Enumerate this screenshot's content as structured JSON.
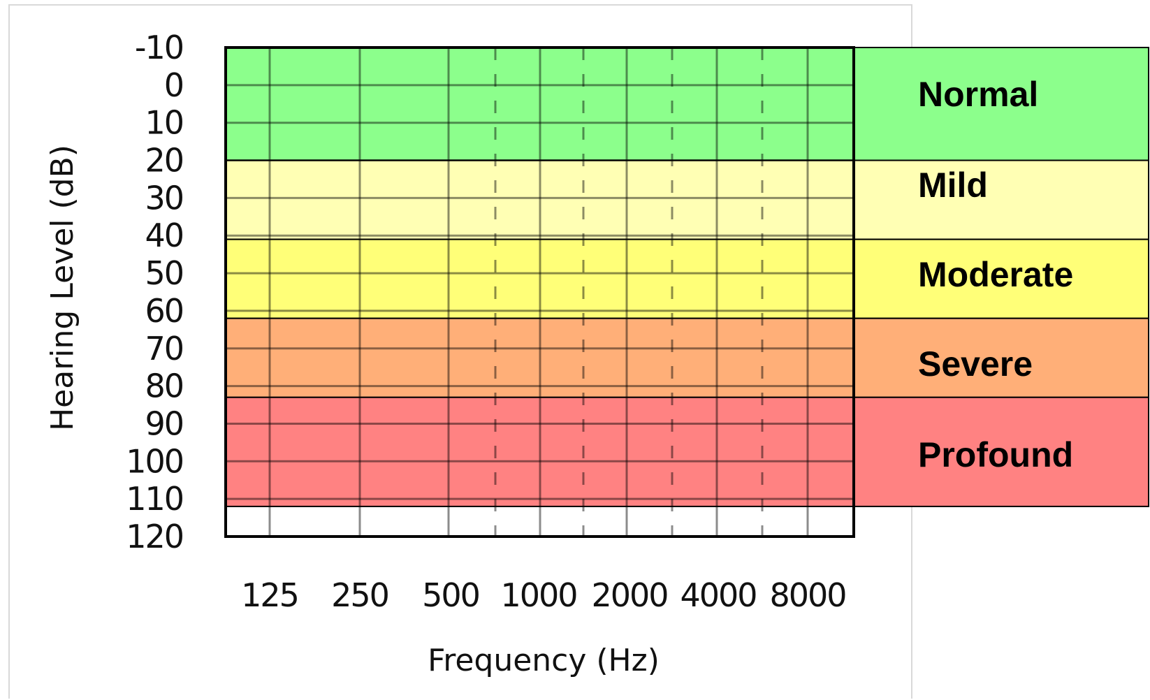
{
  "chart_data": {
    "type": "heatmap",
    "ylabel": "Hearing Level (dB)",
    "xlabel": "Frequency (Hz)",
    "y_ticks": [
      -10,
      0,
      10,
      20,
      30,
      40,
      50,
      60,
      70,
      80,
      90,
      100,
      110,
      120
    ],
    "ylim": [
      -10,
      120
    ],
    "x_ticks": [
      "125",
      "250",
      "500",
      "1000",
      "2000",
      "4000",
      "8000"
    ],
    "bands": [
      {
        "name": "Normal",
        "from": -10,
        "to": 20,
        "color": "#8cff8c"
      },
      {
        "name": "Mild",
        "from": 20,
        "to": 41,
        "color": "#ffffb4"
      },
      {
        "name": "Moderate",
        "from": 41,
        "to": 62,
        "color": "#ffff78"
      },
      {
        "name": "Severe",
        "from": 62,
        "to": 83,
        "color": "#ffaf78"
      },
      {
        "name": "Profound",
        "from": 83,
        "to": 112,
        "color": "#ff8282"
      }
    ],
    "grid": true
  }
}
